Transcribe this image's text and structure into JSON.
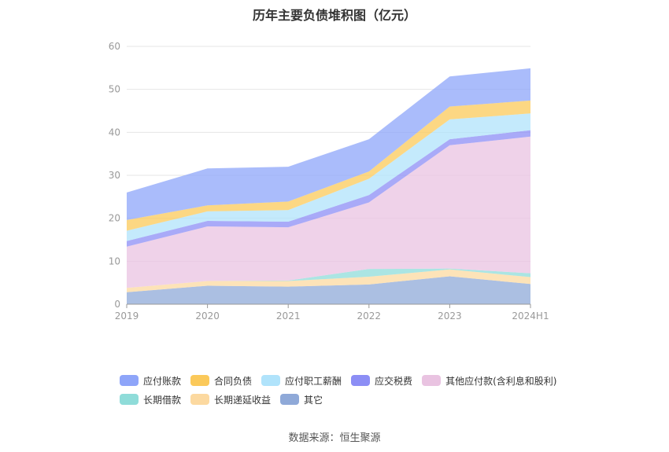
{
  "title": "历年主要负债堆积图（亿元）",
  "source": "数据来源：恒生聚源",
  "chart_data": {
    "type": "area",
    "stacked": true,
    "categories": [
      "2019",
      "2020",
      "2021",
      "2022",
      "2023",
      "2024H1"
    ],
    "ylim": [
      0,
      60
    ],
    "yticks": [
      0,
      10,
      20,
      30,
      40,
      50,
      60
    ],
    "grid": true,
    "legend_position": "bottom",
    "series": [
      {
        "name": "其它",
        "color": "#8fa9d8",
        "values": [
          2.8,
          4.3,
          4.1,
          4.6,
          6.5,
          4.7
        ]
      },
      {
        "name": "长期递延收益",
        "color": "#fcd9a0",
        "values": [
          1.0,
          1.1,
          1.3,
          1.8,
          1.6,
          1.6
        ]
      },
      {
        "name": "长期借款",
        "color": "#8fdcd9",
        "values": [
          0.0,
          0.0,
          0.1,
          1.8,
          0.2,
          0.9
        ]
      },
      {
        "name": "其他应付款(含利息和股利)",
        "color": "#e9c3e1",
        "values": [
          9.6,
          12.7,
          12.4,
          15.5,
          28.7,
          31.8
        ]
      },
      {
        "name": "应交税费",
        "color": "#8c8ef5",
        "values": [
          1.3,
          1.3,
          1.3,
          1.7,
          1.4,
          1.5
        ]
      },
      {
        "name": "应付职工薪酬",
        "color": "#b0e3fb",
        "values": [
          2.4,
          2.2,
          2.7,
          3.8,
          4.6,
          3.9
        ]
      },
      {
        "name": "合同负债",
        "color": "#fbc95a",
        "values": [
          2.5,
          1.4,
          2.0,
          1.7,
          3.0,
          3.0
        ]
      },
      {
        "name": "应付账款",
        "color": "#8ea5f9",
        "values": [
          6.4,
          8.6,
          8.1,
          7.5,
          7.0,
          7.5
        ]
      }
    ]
  }
}
